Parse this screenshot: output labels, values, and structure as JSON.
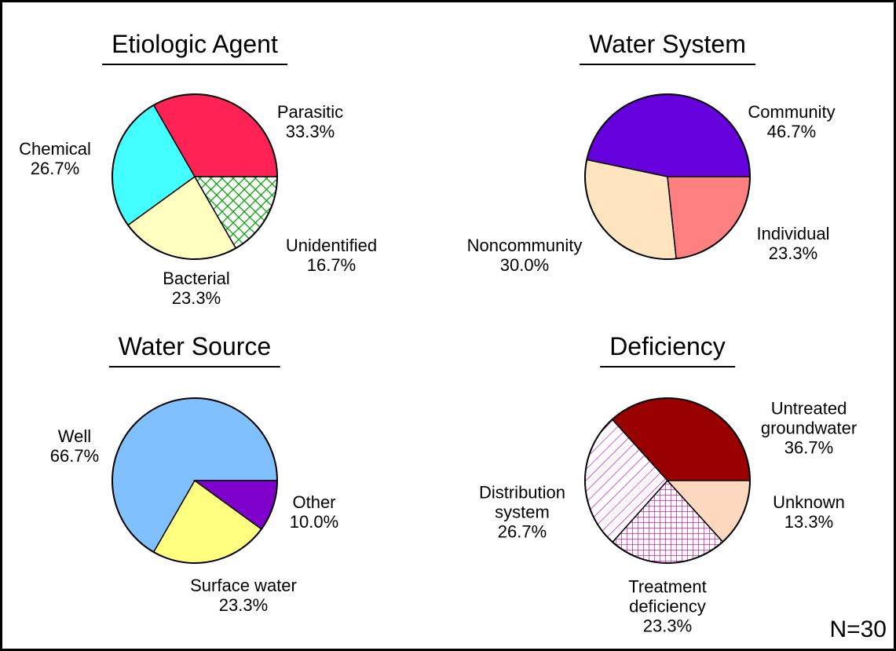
{
  "chart_data": [
    {
      "type": "pie",
      "title": "Etiologic Agent",
      "categories": [
        "Parasitic",
        "Chemical",
        "Bacterial",
        "Unidentified"
      ],
      "values": [
        33.3,
        26.7,
        23.3,
        16.7
      ],
      "value_labels": [
        "33.3%",
        "26.7%",
        "23.3%",
        "16.7%"
      ],
      "colors": [
        "#ff2255",
        "#44ffff",
        "#ffffc0",
        "#00a000"
      ],
      "patterns": [
        "solid",
        "solid",
        "solid",
        "crosshatch"
      ]
    },
    {
      "type": "pie",
      "title": "Water System",
      "categories": [
        "Community",
        "Noncommunity",
        "Individual"
      ],
      "values": [
        46.7,
        30.0,
        23.3
      ],
      "value_labels": [
        "46.7%",
        "30.0%",
        "23.3%"
      ],
      "colors": [
        "#6600dd",
        "#ffe4c0",
        "#ff8080"
      ],
      "patterns": [
        "solid",
        "solid",
        "solid"
      ]
    },
    {
      "type": "pie",
      "title": "Water Source",
      "categories": [
        "Well",
        "Surface water",
        "Other"
      ],
      "values": [
        66.7,
        23.3,
        10.0
      ],
      "value_labels": [
        "66.7%",
        "23.3%",
        "10.0%"
      ],
      "colors": [
        "#80c0ff",
        "#ffff80",
        "#8000cc"
      ],
      "patterns": [
        "solid",
        "solid",
        "solid"
      ]
    },
    {
      "type": "pie",
      "title": "Deficiency",
      "categories": [
        "Untreated groundwater",
        "Distribution system",
        "Treatment deficiency",
        "Unknown"
      ],
      "values": [
        36.7,
        26.7,
        23.3,
        13.3
      ],
      "value_labels": [
        "36.7%",
        "26.7%",
        "23.3%",
        "13.3%"
      ],
      "colors": [
        "#990000",
        "#cc00cc",
        "#cc0099",
        "#ffd8c0"
      ],
      "patterns": [
        "solid",
        "hatch",
        "grid",
        "solid"
      ]
    }
  ],
  "annotation": "N=30"
}
